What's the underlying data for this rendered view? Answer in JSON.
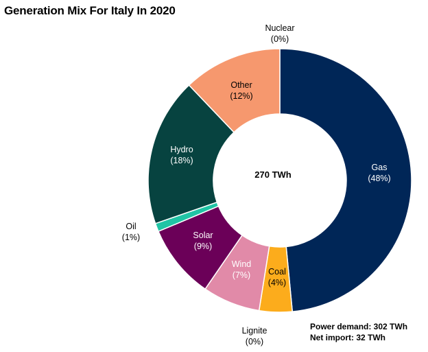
{
  "chart_data": {
    "type": "pie",
    "variant": "donut",
    "title": "Generation Mix For Italy In 2020",
    "center_label": "270 TWh",
    "slices": [
      {
        "name": "Gas",
        "value": 48,
        "pct_label": "(48%)",
        "color": "#002657",
        "text_color": "#ffffff"
      },
      {
        "name": "Coal",
        "value": 4,
        "pct_label": "(4%)",
        "color": "#fcac1c",
        "text_color": "#000000"
      },
      {
        "name": "Lignite",
        "value": 0,
        "pct_label": "(0%)",
        "color": "#7a4a2a",
        "text_color": "#000000"
      },
      {
        "name": "Wind",
        "value": 7,
        "pct_label": "(7%)",
        "color": "#e18aa8",
        "text_color": "#ffffff"
      },
      {
        "name": "Solar",
        "value": 9,
        "pct_label": "(9%)",
        "color": "#6b0058",
        "text_color": "#ffffff"
      },
      {
        "name": "Oil",
        "value": 1,
        "pct_label": "(1%)",
        "color": "#20c4a5",
        "text_color": "#000000"
      },
      {
        "name": "Hydro",
        "value": 18,
        "pct_label": "(18%)",
        "color": "#074340",
        "text_color": "#ffffff"
      },
      {
        "name": "Other",
        "value": 12,
        "pct_label": "(12%)",
        "color": "#f6986e",
        "text_color": "#000000"
      },
      {
        "name": "Nuclear",
        "value": 0,
        "pct_label": "(0%)",
        "color": "#9a9a9a",
        "text_color": "#000000"
      }
    ]
  },
  "notes": {
    "power_demand": "Power demand: 302 TWh",
    "net_import": "Net import: 32 TWh"
  }
}
